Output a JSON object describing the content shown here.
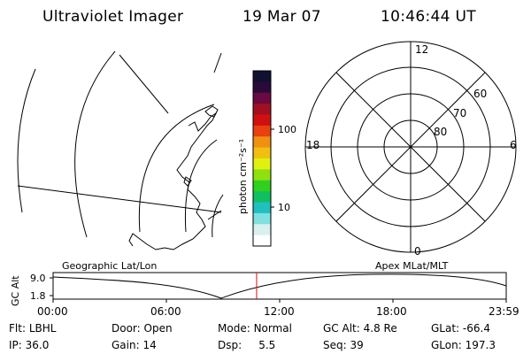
{
  "header": {
    "title": "Ultraviolet Imager",
    "date": "19 Mar 07",
    "time": "10:46:44 UT"
  },
  "colorbar": {
    "unit_label": "photon cm⁻²s⁻¹",
    "tick_labels": [
      "100",
      "10"
    ],
    "colors": [
      "#101030",
      "#2a0a3a",
      "#6a0a40",
      "#a01020",
      "#d01010",
      "#e84010",
      "#f09010",
      "#f0c010",
      "#e0f010",
      "#90e010",
      "#30d020",
      "#10c060",
      "#20c0c0",
      "#80e0e0",
      "#d8f0f0",
      "#ffffff"
    ]
  },
  "polar_grid": {
    "mlt_labels": {
      "top": "12",
      "left": "18",
      "right": "6",
      "bottom": "0"
    },
    "lat_labels": [
      "60",
      "70",
      "80"
    ]
  },
  "map_labels": {
    "left": "Geographic Lat/Lon",
    "right": "Apex MLat/MLT"
  },
  "altitude_plot": {
    "axis_title": "GC Alt",
    "y_ticks": [
      "9.0",
      "1.8"
    ],
    "x_ticks": [
      "00:00",
      "06:00",
      "12:00",
      "18:00",
      "23:59"
    ],
    "current_time_marker_hours": 10.78
  },
  "info": {
    "row1": [
      {
        "label": "Flt:",
        "value": "LBHL"
      },
      {
        "label": "Door:",
        "value": "Open"
      },
      {
        "label": "Mode:",
        "value": "Normal"
      },
      {
        "label": "GC Alt:",
        "value": "4.8 Re"
      },
      {
        "label": "GLat:",
        "value": "-66.4"
      }
    ],
    "row2": [
      {
        "label": "IP:",
        "value": "36.0"
      },
      {
        "label": "Gain:",
        "value": "14"
      },
      {
        "label": "Dsp:",
        "value": "5.5"
      },
      {
        "label": "Seq:",
        "value": "39"
      },
      {
        "label": "GLon:",
        "value": "197.3"
      }
    ]
  }
}
